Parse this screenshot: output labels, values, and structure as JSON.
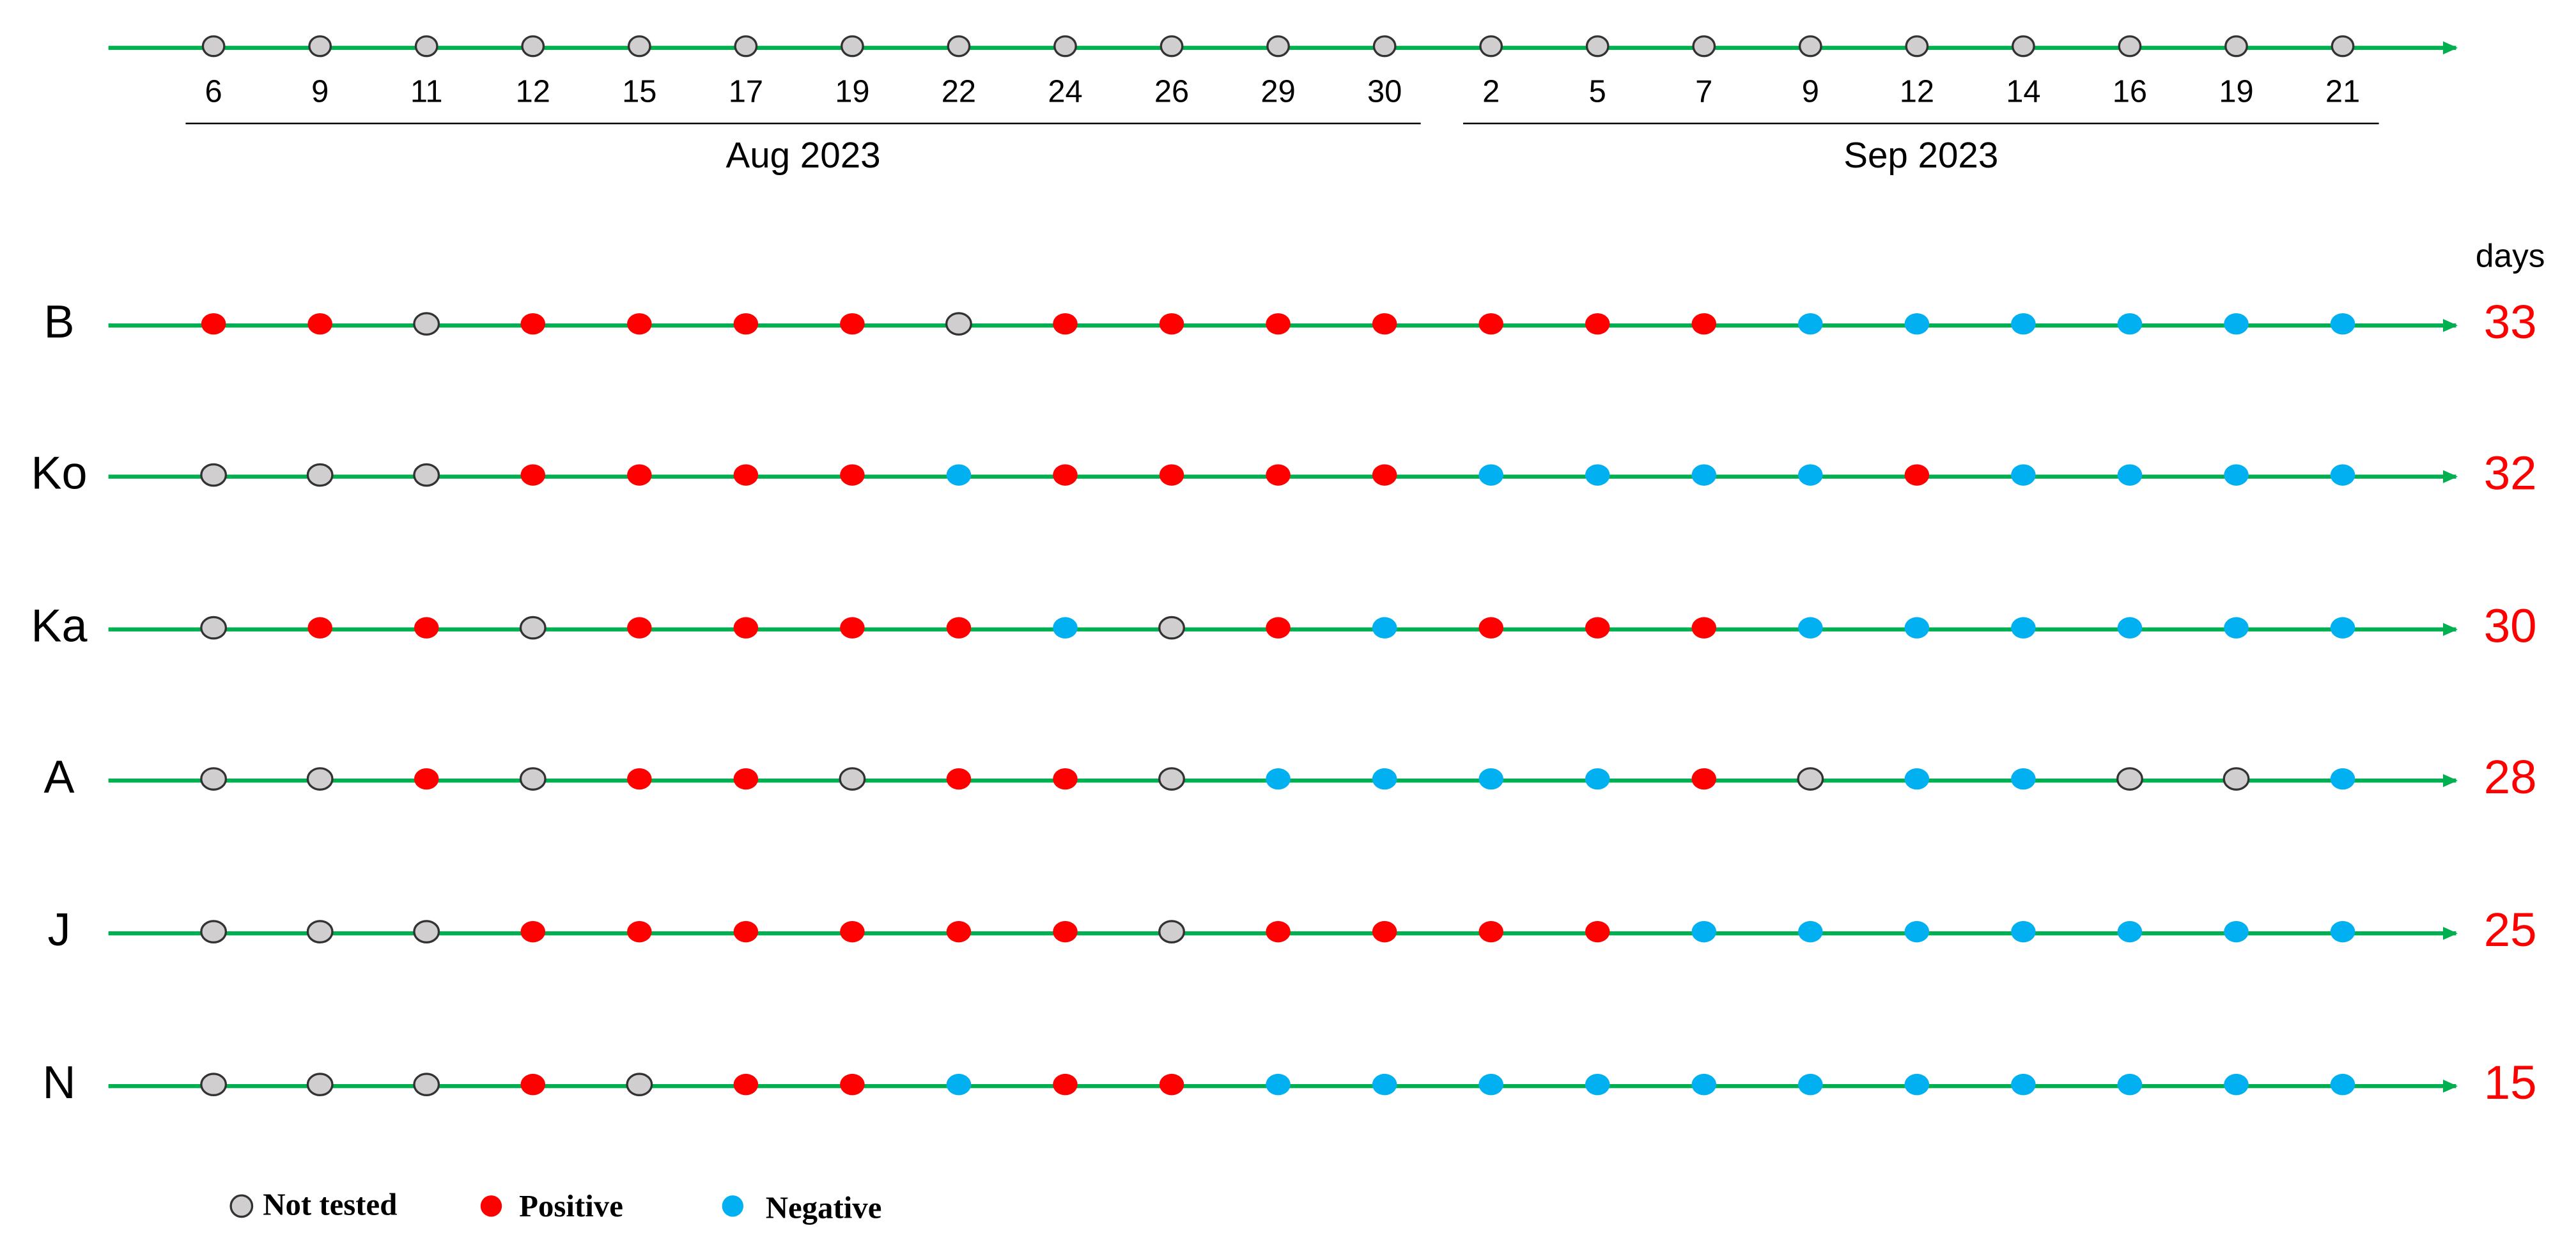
{
  "timeline": {
    "months": [
      {
        "label": "Aug 2023",
        "days": [
          6,
          9,
          11,
          12,
          15,
          17,
          19,
          22,
          24,
          26,
          29,
          30
        ]
      },
      {
        "label": "Sep 2023",
        "days": [
          2,
          5,
          7,
          9,
          12,
          14,
          16,
          19,
          21
        ]
      }
    ],
    "days_header": "days"
  },
  "legend": [
    {
      "label": "Not tested",
      "color": "#d0cece"
    },
    {
      "label": "Positive",
      "color": "#ff0000"
    },
    {
      "label": "Negative",
      "color": "#00b0f0"
    }
  ],
  "subjects": [
    {
      "name": "B",
      "days": 33,
      "results": [
        "Positive",
        "Positive",
        "Not tested",
        "Positive",
        "Positive",
        "Positive",
        "Positive",
        "Not tested",
        "Positive",
        "Positive",
        "Positive",
        "Positive",
        "Positive",
        "Positive",
        "Positive",
        "Negative",
        "Negative",
        "Negative",
        "Negative",
        "Negative",
        "Negative"
      ]
    },
    {
      "name": "Ko",
      "days": 32,
      "results": [
        "Not tested",
        "Not tested",
        "Not tested",
        "Positive",
        "Positive",
        "Positive",
        "Positive",
        "Negative",
        "Positive",
        "Positive",
        "Positive",
        "Positive",
        "Negative",
        "Negative",
        "Negative",
        "Negative",
        "Positive",
        "Negative",
        "Negative",
        "Negative",
        "Negative"
      ]
    },
    {
      "name": "Ka",
      "days": 30,
      "results": [
        "Not tested",
        "Positive",
        "Positive",
        "Not tested",
        "Positive",
        "Positive",
        "Positive",
        "Positive",
        "Negative",
        "Not tested",
        "Positive",
        "Negative",
        "Positive",
        "Positive",
        "Positive",
        "Negative",
        "Negative",
        "Negative",
        "Negative",
        "Negative",
        "Negative"
      ]
    },
    {
      "name": "A",
      "days": 28,
      "results": [
        "Not tested",
        "Not tested",
        "Positive",
        "Not tested",
        "Positive",
        "Positive",
        "Not tested",
        "Positive",
        "Positive",
        "Not tested",
        "Negative",
        "Negative",
        "Negative",
        "Negative",
        "Positive",
        "Not tested",
        "Negative",
        "Negative",
        "Not tested",
        "Not tested",
        "Negative"
      ]
    },
    {
      "name": "J",
      "days": 25,
      "results": [
        "Not tested",
        "Not tested",
        "Not tested",
        "Positive",
        "Positive",
        "Positive",
        "Positive",
        "Positive",
        "Positive",
        "Not tested",
        "Positive",
        "Positive",
        "Positive",
        "Positive",
        "Negative",
        "Negative",
        "Negative",
        "Negative",
        "Negative",
        "Negative",
        "Negative"
      ]
    },
    {
      "name": "N",
      "days": 15,
      "results": [
        "Not tested",
        "Not tested",
        "Not tested",
        "Positive",
        "Not tested",
        "Positive",
        "Positive",
        "Negative",
        "Positive",
        "Positive",
        "Negative",
        "Negative",
        "Negative",
        "Negative",
        "Negative",
        "Negative",
        "Negative",
        "Negative",
        "Negative",
        "Negative",
        "Negative"
      ]
    }
  ]
}
